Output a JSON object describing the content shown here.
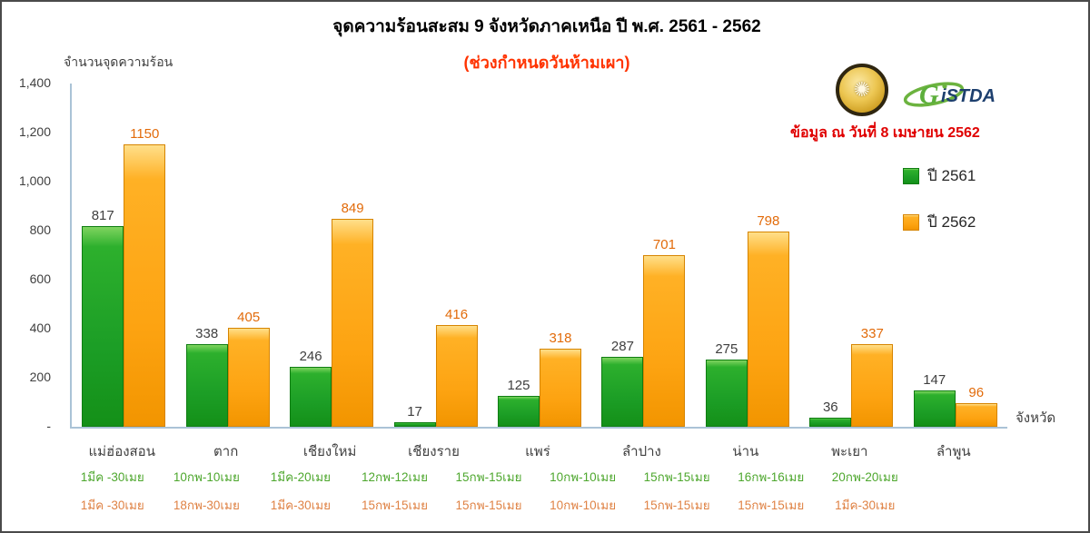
{
  "header": {
    "title": "จุดความร้อนสะสม 9 จังหวัดภาคเหนือ ปี พ.ศ. 2561 - 2562",
    "subtitle": "(ช่วงกำหนดวันห้ามเผา)",
    "data_date": "ข้อมูล ณ วันที่  8 เมษายน 2562",
    "logos": {
      "ministry_seal": "ministry-of-science-seal",
      "gistda_text_g": "G",
      "gistda_text_rest": "iSTDA"
    }
  },
  "legend": [
    {
      "label": "ปี 2561",
      "color": "#1FA32B"
    },
    {
      "label": "ปี 2562",
      "color": "#FFA519"
    }
  ],
  "chart_data": {
    "type": "bar",
    "title": "จุดความร้อนสะสม 9 จังหวัดภาคเหนือ ปี พ.ศ. 2561 - 2562",
    "subtitle": "(ช่วงกำหนดวันห้ามเผา)",
    "ylabel": "จำนวนจุดความร้อน",
    "xlabel": "จังหวัด",
    "ylim": [
      0,
      1400
    ],
    "ytick_labels": [
      "1,400",
      "1,200",
      "1,000",
      "800",
      "600",
      "400",
      "200",
      "-"
    ],
    "grid": false,
    "legend_position": "right",
    "categories": [
      "แม่ฮ่องสอน",
      "ตาก",
      "เชียงใหม่",
      "เชียงราย",
      "แพร่",
      "ลำปาง",
      "น่าน",
      "พะเยา",
      "ลำพูน"
    ],
    "series": [
      {
        "name": "ปี 2561",
        "color": "#1FA32B",
        "label_color": "#3F3F3F",
        "values": [
          817,
          338,
          246,
          17,
          125,
          287,
          275,
          36,
          147
        ],
        "ban_periods": [
          "1มีค -30เมย",
          "10กพ-10เมย",
          "1มีค-20เมย",
          "12กพ-12เมย",
          "15กพ-15เมย",
          "10กพ-10เมย",
          "15กพ-15เมย",
          "16กพ-16เมย",
          "20กพ-20เมย"
        ]
      },
      {
        "name": "ปี 2562",
        "color": "#FFA519",
        "label_color": "#E26B0A",
        "values": [
          1150,
          405,
          849,
          416,
          318,
          701,
          798,
          337,
          96
        ],
        "ban_periods": [
          "1มีค -30เมย",
          "18กพ-30เมย",
          "1มีค-30เมย",
          "15กพ-15เมย",
          "15กพ-15เมย",
          "10กพ-10เมย",
          "15กพ-15เมย",
          "15กพ-15เมย",
          "1มีค-30เมย"
        ]
      }
    ]
  }
}
